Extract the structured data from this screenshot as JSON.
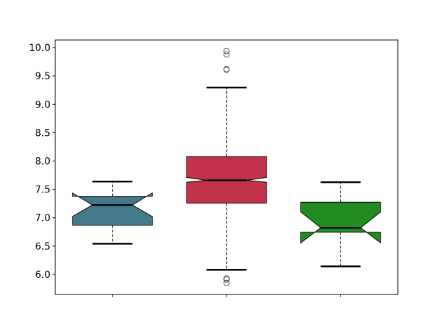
{
  "chart_data": {
    "type": "boxplot",
    "notched": true,
    "title": "",
    "xlabel": "",
    "ylabel": "",
    "ylim": [
      5.647,
      10.134
    ],
    "xlim": [
      0.5,
      3.5
    ],
    "yticks": [
      "6.0",
      "6.5",
      "7.0",
      "7.5",
      "8.0",
      "8.5",
      "9.0",
      "9.5",
      "10.0"
    ],
    "xticks": [
      1,
      2,
      3
    ],
    "xtick_labels": [
      "",
      "",
      ""
    ],
    "grid": false,
    "box_width": 0.7,
    "boxes": [
      {
        "position": 1,
        "color": "#437a8c",
        "whisker_low": 6.543,
        "q1": 6.867,
        "notch_low": 7.021,
        "median": 7.224,
        "notch_high": 7.438,
        "q3": 7.378,
        "whisker_high": 7.638,
        "outliers": []
      },
      {
        "position": 2,
        "color": "#c2334a",
        "whisker_low": 6.081,
        "q1": 7.256,
        "notch_low": 7.626,
        "median": 7.66,
        "notch_high": 7.711,
        "q3": 8.079,
        "whisker_high": 9.295,
        "outliers": [
          9.94,
          9.88,
          9.62,
          9.61,
          5.93,
          5.91,
          5.85
        ]
      },
      {
        "position": 3,
        "color": "#228b22",
        "whisker_low": 6.142,
        "q1": 6.745,
        "notch_low": 6.556,
        "median": 6.823,
        "notch_high": 7.103,
        "q3": 7.273,
        "whisker_high": 7.626,
        "outliers": []
      }
    ]
  }
}
